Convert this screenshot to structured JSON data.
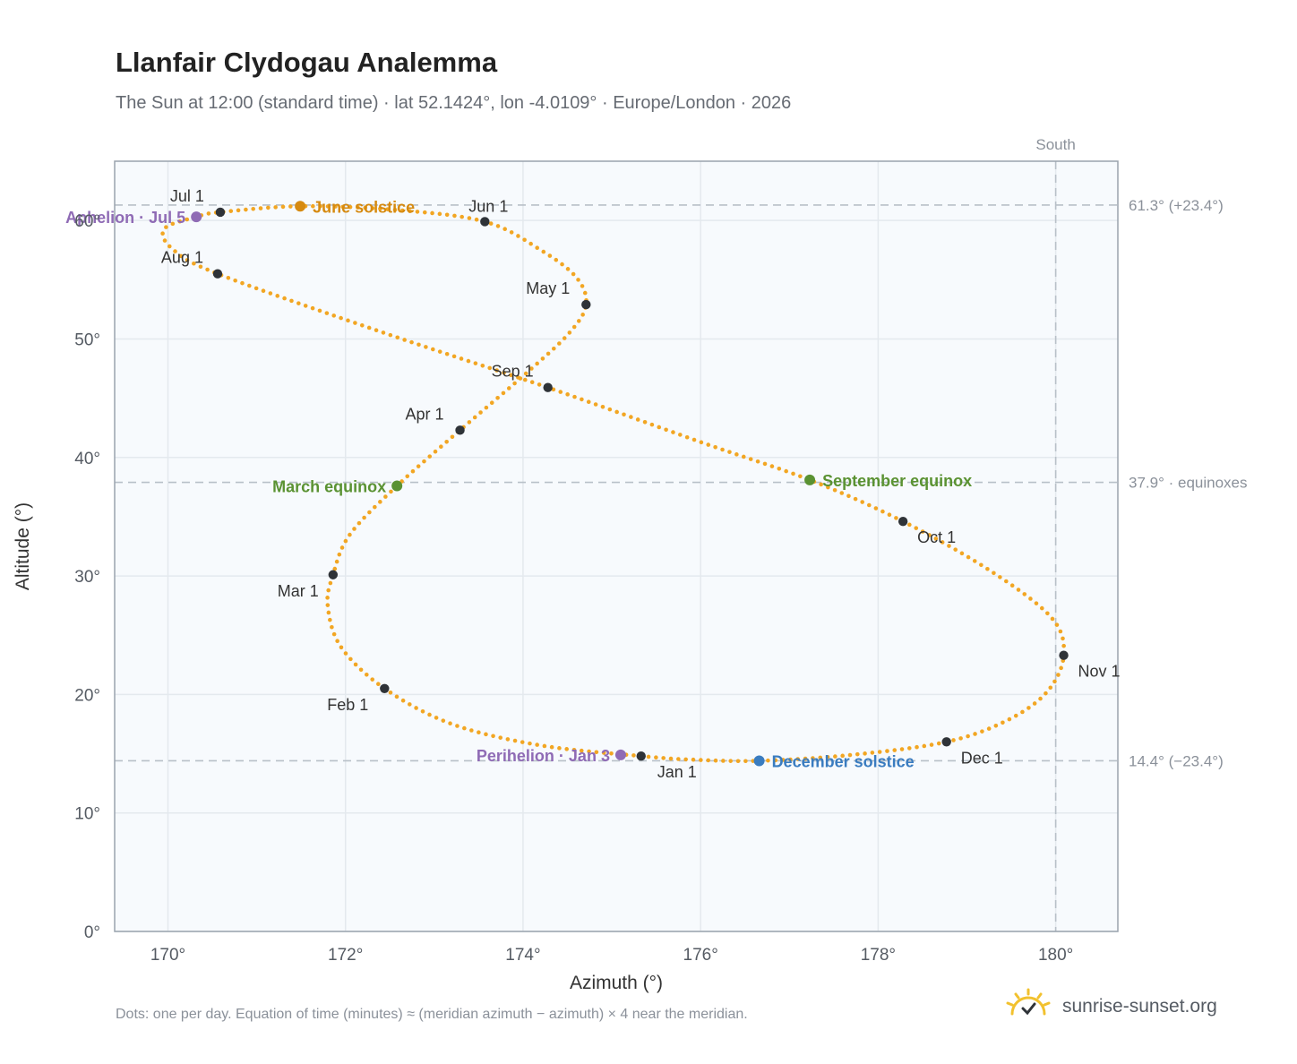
{
  "header": {
    "title": "Llanfair Clydogau Analemma",
    "subtitle": "The Sun at 12:00 (standard time) · lat 52.1424°, lon -4.0109° · Europe/London · 2026"
  },
  "footer": {
    "note": "Dots: one per day. Equation of time (minutes) ≈ (meridian azimuth − azimuth) × 4 near the meridian.",
    "brand": "sunrise-sunset.org",
    "brand_icon": "sun-logo-icon"
  },
  "colors": {
    "curve": "#f2a623",
    "month_marker": "#2f3338",
    "solstice_june": "#d68a10",
    "solstice_december": "#3a7cc0",
    "equinox": "#5a9232",
    "apsis": "#8f6bb5",
    "reference_line": "#b8c0c8",
    "plot_background": "#f7fafd"
  },
  "chart_data": {
    "type": "scatter",
    "xlabel": "Azimuth (°)",
    "ylabel": "Altitude (°)",
    "xlim": [
      169.4,
      180.7
    ],
    "ylim": [
      0,
      65
    ],
    "x_ticks": [
      170,
      172,
      174,
      176,
      178,
      180
    ],
    "x_tick_labels": [
      "170°",
      "172°",
      "174°",
      "176°",
      "178°",
      "180°"
    ],
    "y_ticks": [
      0,
      10,
      20,
      30,
      40,
      50,
      60
    ],
    "y_tick_labels": [
      "0°",
      "10°",
      "20°",
      "30°",
      "40°",
      "50°",
      "60°"
    ],
    "grid": true,
    "meridian": {
      "azimuth": 180,
      "label": "South"
    },
    "reference_lines": [
      {
        "altitude": 61.3,
        "label": "61.3° (+23.4°)"
      },
      {
        "altitude": 37.9,
        "label": "37.9° · equinoxes"
      },
      {
        "altitude": 14.4,
        "label": "14.4° (−23.4°)"
      }
    ],
    "month_markers": [
      {
        "label": "Jan 1",
        "azimuth": 175.33,
        "altitude": 14.8
      },
      {
        "label": "Feb 1",
        "azimuth": 172.44,
        "altitude": 20.5
      },
      {
        "label": "Mar 1",
        "azimuth": 171.86,
        "altitude": 30.1
      },
      {
        "label": "Apr 1",
        "azimuth": 173.29,
        "altitude": 42.3
      },
      {
        "label": "May 1",
        "azimuth": 174.71,
        "altitude": 52.9
      },
      {
        "label": "Jun 1",
        "azimuth": 173.57,
        "altitude": 59.9
      },
      {
        "label": "Jul 1",
        "azimuth": 170.59,
        "altitude": 60.7
      },
      {
        "label": "Aug 1",
        "azimuth": 170.56,
        "altitude": 55.5
      },
      {
        "label": "Sep 1",
        "azimuth": 174.28,
        "altitude": 45.9
      },
      {
        "label": "Oct 1",
        "azimuth": 178.28,
        "altitude": 34.6
      },
      {
        "label": "Nov 1",
        "azimuth": 180.09,
        "altitude": 23.3
      },
      {
        "label": "Dec 1",
        "azimuth": 178.77,
        "altitude": 16.0
      }
    ],
    "events": [
      {
        "label": "Perihelion · Jan 3",
        "azimuth": 175.1,
        "altitude": 14.9,
        "color_key": "apsis",
        "side": "left"
      },
      {
        "label": "March equinox",
        "azimuth": 172.58,
        "altitude": 37.6,
        "color_key": "equinox",
        "side": "left"
      },
      {
        "label": "June solstice",
        "azimuth": 171.49,
        "altitude": 61.2,
        "color_key": "solstice_june",
        "side": "right"
      },
      {
        "label": "Aphelion · Jul 5",
        "azimuth": 170.32,
        "altitude": 60.3,
        "color_key": "apsis",
        "side": "left"
      },
      {
        "label": "September equinox",
        "azimuth": 177.23,
        "altitude": 38.1,
        "color_key": "equinox",
        "side": "right"
      },
      {
        "label": "December solstice",
        "azimuth": 176.66,
        "altitude": 14.4,
        "color_key": "solstice_december",
        "side": "right"
      }
    ]
  }
}
